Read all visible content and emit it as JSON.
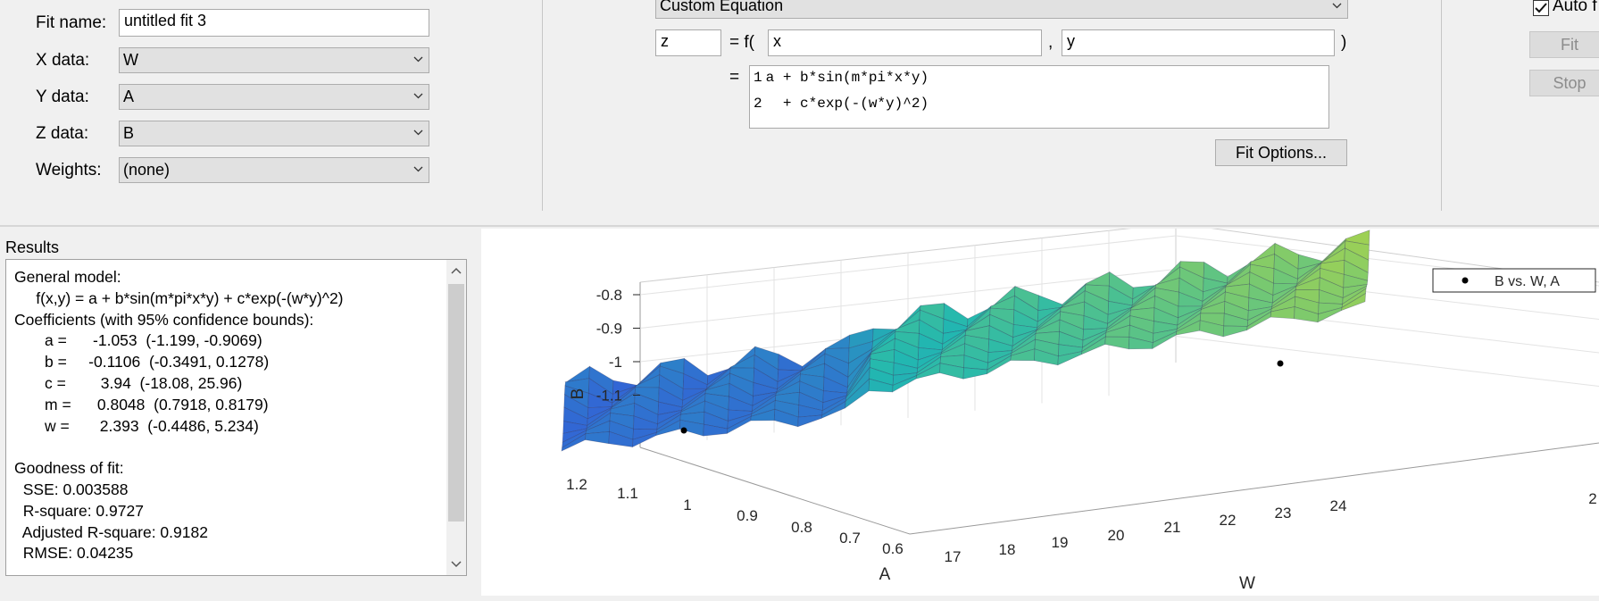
{
  "fit_panel": {
    "fit_name_label": "Fit name:",
    "fit_name_value": "untitled fit 3",
    "x_data_label": "X data:",
    "x_data_value": "W",
    "y_data_label": "Y data:",
    "y_data_value": "A",
    "z_data_label": "Z data:",
    "z_data_value": "B",
    "weights_label": "Weights:",
    "weights_value": "(none)"
  },
  "equation_panel": {
    "fit_type": "Custom Equation",
    "output_var": "z",
    "equals_f": "= f(",
    "var1": "x",
    "comma": ",",
    "var2": "y",
    "close_paren": ")",
    "equals": "=",
    "code_lines": [
      {
        "num": "1",
        "text": "a + b*sin(m*pi*x*y)"
      },
      {
        "num": "2",
        "text": "  + c*exp(-(w*y)^2)"
      }
    ],
    "fit_options_label": "Fit Options..."
  },
  "controls": {
    "auto_fit_label": "Auto f",
    "auto_fit_checked": true,
    "fit_label": "Fit",
    "stop_label": "Stop"
  },
  "results": {
    "title": "Results",
    "lines": [
      "General model:",
      "     f(x,y) = a + b*sin(m*pi*x*y) + c*exp(-(w*y)^2)",
      "Coefficients (with 95% confidence bounds):",
      "       a =      -1.053  (-1.199, -0.9069)",
      "       b =     -0.1106  (-0.3491, 0.1278)",
      "       c =        3.94  (-18.08, 25.96)",
      "       m =      0.8048  (0.7918, 0.8179)",
      "       w =       2.393  (-0.4486, 5.234)",
      "",
      "Goodness of fit:",
      "  SSE: 0.003588",
      "  R-square: 0.9727",
      "  Adjusted R-square: 0.9182",
      "  RMSE: 0.04235"
    ]
  },
  "plot": {
    "legend_label": "B vs. W, A",
    "z_label": "B",
    "y_label": "A",
    "x_label": "W",
    "z_ticks": [
      "-0.8",
      "-0.9",
      "-1",
      "-1.1"
    ],
    "a_ticks": [
      "1.2",
      "1.1",
      "1",
      "0.9",
      "0.8",
      "0.7",
      "0.6"
    ],
    "w_ticks": [
      "17",
      "18",
      "19",
      "20",
      "21",
      "22",
      "23",
      "24",
      "2"
    ],
    "colors": {
      "surface_low": "#3a3fe6",
      "surface_mid": "#22b8b0",
      "surface_high": "#d8dc2a"
    }
  }
}
